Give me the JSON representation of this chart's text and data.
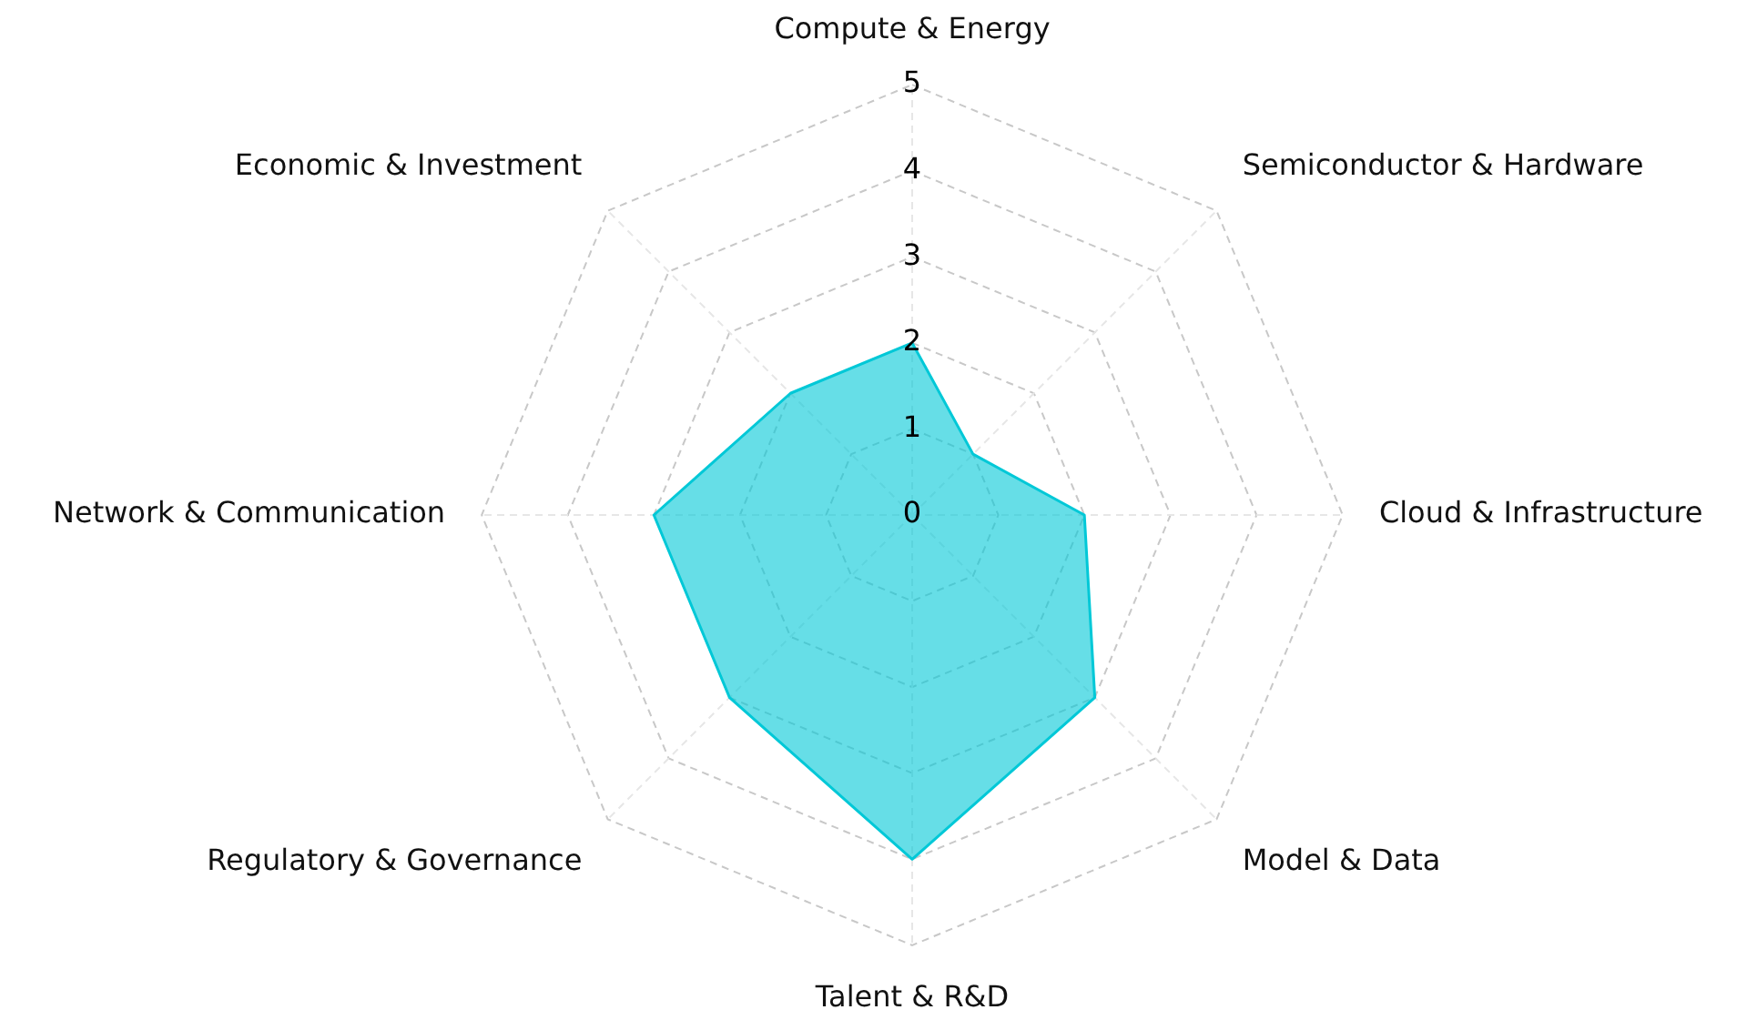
{
  "chart_data": {
    "type": "radar",
    "categories": [
      "Compute & Energy",
      "Semiconductor & Hardware",
      "Cloud & Infrastructure",
      "Model & Data",
      "Talent & R&D",
      "Regulatory & Governance",
      "Network & Communication",
      "Economic & Investment"
    ],
    "series": [
      {
        "color": "#00c8d7",
        "values": [
          2,
          1,
          2,
          3,
          4,
          3,
          3,
          2
        ]
      }
    ],
    "ylim": [
      0,
      5
    ],
    "yticks": [
      0,
      1,
      2,
      3,
      4,
      5
    ],
    "grid": true,
    "legend": false,
    "marker": "none",
    "line_style": "solid"
  }
}
